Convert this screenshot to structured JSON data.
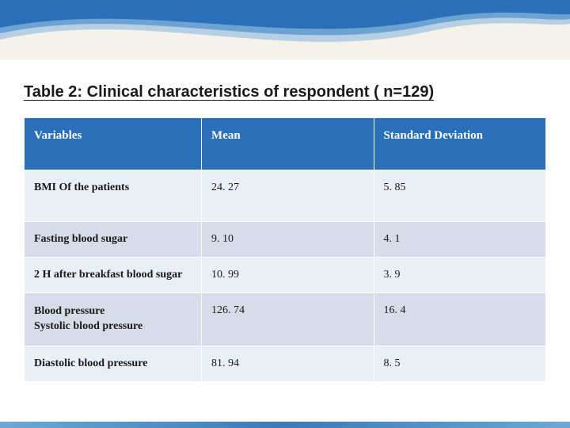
{
  "title": "Table 2: Clinical characteristics of respondent ( n=129)",
  "table": {
    "type": "table",
    "header_bg": "#2a6fb8",
    "header_fg": "#ffffff",
    "row_alt_bg_odd": "#eaeef5",
    "row_alt_bg_even": "#d6dce8",
    "border_color": "#ffffff",
    "font_family": "Georgia",
    "header_fontsize": 15,
    "cell_fontsize": 14,
    "columns": [
      {
        "label": "Variables",
        "width_pct": 34
      },
      {
        "label": "Mean",
        "width_pct": 33
      },
      {
        "label": "Standard Deviation",
        "width_pct": 33
      }
    ],
    "rows": [
      {
        "variable": "BMI Of the patients",
        "mean": "24. 27",
        "sd": "5. 85",
        "tall": true
      },
      {
        "variable": "Fasting blood sugar",
        "mean": "9. 10",
        "sd": "4. 1"
      },
      {
        "variable": "2 H after breakfast blood sugar",
        "mean": "10. 99",
        "sd": "3. 9"
      },
      {
        "variable": "Blood pressure\nSystolic blood pressure",
        "mean": "126. 74",
        "sd": "16. 4"
      },
      {
        "variable": "Diastolic blood pressure",
        "mean": "81. 94",
        "sd": "8. 5"
      }
    ]
  },
  "decor": {
    "wave_colors": [
      "#2a6fb8",
      "#5a97cd",
      "#9bc0e0"
    ],
    "page_bg_top": "#f5f2ec",
    "page_bg_main": "#ffffff",
    "footer_gradient": [
      "#6da8d6",
      "#3a7bb5",
      "#6da8d6"
    ]
  }
}
